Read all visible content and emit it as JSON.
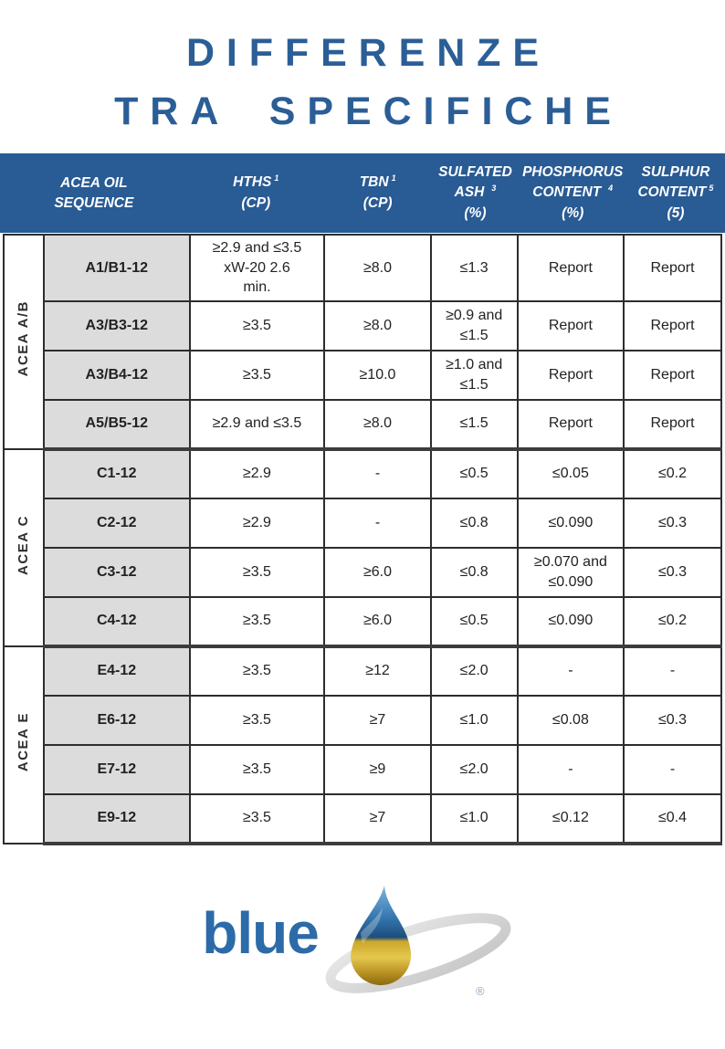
{
  "title": {
    "line1": "DIFFERENZE",
    "line2": "TRA SPECIFICHE"
  },
  "colors": {
    "title_blue": "#2b5e96",
    "header_band_blue": "#295b94",
    "sequence_cell_gray": "#dcdcdc",
    "logo_blue": "#2d6ba8",
    "drop_blue": "#2f6da9",
    "drop_gold": "#c9a62c"
  },
  "table": {
    "header": {
      "col0": {
        "l1": "ACEA OIL",
        "l2": "SEQUENCE"
      },
      "col1": {
        "l1": "HTHS",
        "sup": "1",
        "l2": "(CP)"
      },
      "col2": {
        "l1": "TBN",
        "sup": "1",
        "l2": "(CP)"
      },
      "col3": {
        "l1": "SULFATED",
        "l2": "ASH",
        "sup": "3",
        "l3": "(%)"
      },
      "col4": {
        "l1": "PHOSPHORUS",
        "l2": "CONTENT",
        "sup": "4",
        "l3": "(%)"
      },
      "col5": {
        "l1": "SULPHUR",
        "l2": "CONTENT",
        "sup": "5",
        "l3": "(5)"
      }
    },
    "groups": [
      {
        "label": "ACEA A/B",
        "rows": [
          {
            "seq": "A1/B1-12",
            "hths": "≥2.9 and ≤3.5\nxW-20 2.6\nmin.",
            "tbn": "≥8.0",
            "ash": "≤1.3",
            "phos": "Report",
            "sulphur": "Report"
          },
          {
            "seq": "A3/B3-12",
            "hths": "≥3.5",
            "tbn": "≥8.0",
            "ash": "≥0.9 and\n≤1.5",
            "phos": "Report",
            "sulphur": "Report"
          },
          {
            "seq": "A3/B4-12",
            "hths": "≥3.5",
            "tbn": "≥10.0",
            "ash": "≥1.0 and\n≤1.5",
            "phos": "Report",
            "sulphur": "Report"
          },
          {
            "seq": "A5/B5-12",
            "hths": "≥2.9 and ≤3.5",
            "tbn": "≥8.0",
            "ash": "≤1.5",
            "phos": "Report",
            "sulphur": "Report"
          }
        ]
      },
      {
        "label": "ACEA C",
        "rows": [
          {
            "seq": "C1-12",
            "hths": "≥2.9",
            "tbn": "-",
            "ash": "≤0.5",
            "phos": "≤0.05",
            "sulphur": "≤0.2"
          },
          {
            "seq": "C2-12",
            "hths": "≥2.9",
            "tbn": "-",
            "ash": "≤0.8",
            "phos": "≤0.090",
            "sulphur": "≤0.3"
          },
          {
            "seq": "C3-12",
            "hths": "≥3.5",
            "tbn": "≥6.0",
            "ash": "≤0.8",
            "phos": "≥0.070 and\n≤0.090",
            "sulphur": "≤0.3"
          },
          {
            "seq": "C4-12",
            "hths": "≥3.5",
            "tbn": "≥6.0",
            "ash": "≤0.5",
            "phos": "≤0.090",
            "sulphur": "≤0.2"
          }
        ]
      },
      {
        "label": "ACEA E",
        "rows": [
          {
            "seq": "E4-12",
            "hths": "≥3.5",
            "tbn": "≥12",
            "ash": "≤2.0",
            "phos": "-",
            "sulphur": "-"
          },
          {
            "seq": "E6-12",
            "hths": "≥3.5",
            "tbn": "≥7",
            "ash": "≤1.0",
            "phos": "≤0.08",
            "sulphur": "≤0.3"
          },
          {
            "seq": "E7-12",
            "hths": "≥3.5",
            "tbn": "≥9",
            "ash": "≤2.0",
            "phos": "-",
            "sulphur": "-"
          },
          {
            "seq": "E9-12",
            "hths": "≥3.5",
            "tbn": "≥7",
            "ash": "≤1.0",
            "phos": "≤0.12",
            "sulphur": "≤0.4"
          }
        ]
      }
    ]
  },
  "logo": {
    "text": "blue",
    "registered_mark": "®",
    "icon": "oil-drop-with-orbit-ring"
  }
}
